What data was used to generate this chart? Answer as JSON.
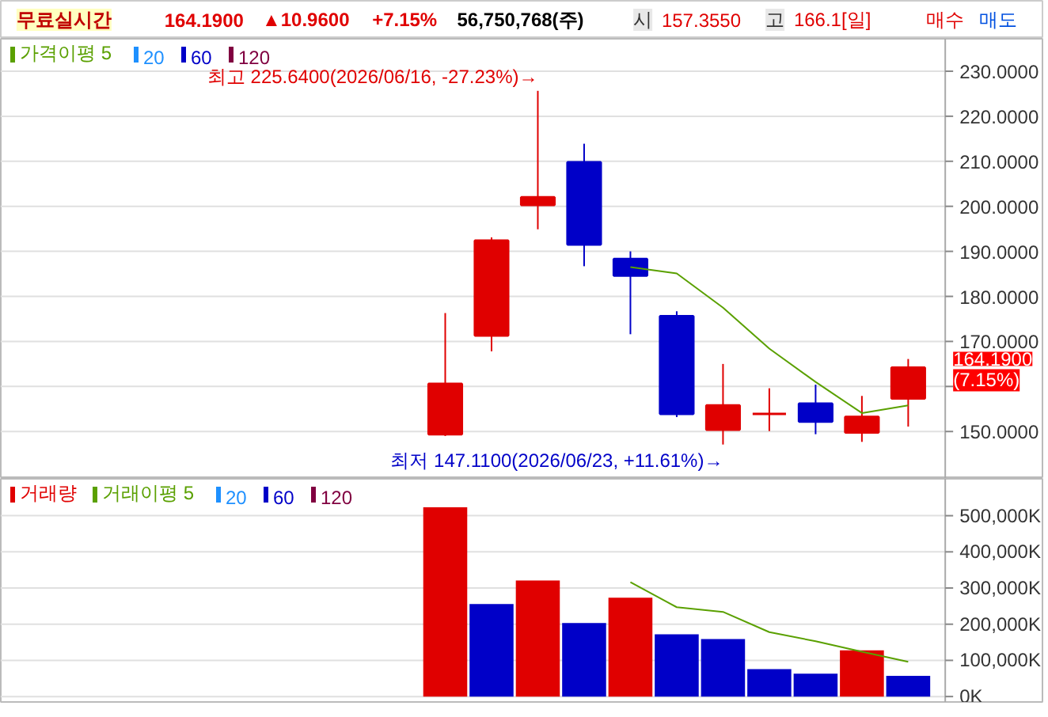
{
  "chart_data": [
    {
      "type": "other",
      "annotations": [
        "무료실시간",
        "164.1900",
        "▲10.9600",
        "+7.15%",
        "56,750,768(주)",
        "시",
        "157.3550",
        "고",
        "166.1[일]",
        "매수",
        "매도"
      ]
    },
    {
      "type": "candlestick",
      "categories": [
        null,
        null,
        null,
        null,
        null,
        null,
        null,
        null,
        null,
        null,
        null
      ],
      "ohlc": [
        [
          149.4,
          176.3,
          149.0,
          160.6
        ],
        [
          171.3,
          193.1,
          167.8,
          192.4
        ],
        [
          200.3,
          225.64,
          194.9,
          202.0
        ],
        [
          209.8,
          213.9,
          186.7,
          191.5
        ],
        [
          188.3,
          190.0,
          171.6,
          184.6
        ],
        [
          175.6,
          176.7,
          153.2,
          153.9
        ],
        [
          150.4,
          165.0,
          147.11,
          155.8
        ],
        [
          153.9,
          159.6,
          150.1,
          153.9
        ],
        [
          156.2,
          160.4,
          149.4,
          152.2
        ],
        [
          149.8,
          157.9,
          147.7,
          153.23
        ],
        [
          157.355,
          166.1,
          151.1,
          164.19
        ]
      ],
      "colors": [
        "#e00000",
        "#e00000",
        "#e00000",
        "#0000c8",
        "#0000c8",
        "#0000c8",
        "#e00000",
        "#e00000",
        "#0000c8",
        "#e00000",
        "#e00000"
      ],
      "series": [
        {
          "name": "가격이평 5",
          "type": "line",
          "color": "#5aa000",
          "values": [
            null,
            null,
            null,
            null,
            186.5,
            185.1,
            177.5,
            168.4,
            161.0,
            154.1,
            155.8
          ]
        }
      ],
      "annotations": [
        "20",
        "60",
        "120",
        "최고 225.6400(2026/06/16, -27.23%)→",
        "최저 147.1100(2026/06/23, +11.61%)→",
        "164.1900",
        "(7.15%)"
      ],
      "ylim": [
        139.5,
        237.2
      ],
      "yticks": [
        {
          "value": 150,
          "label": "150.0000"
        },
        {
          "value": 160,
          "label": null
        },
        {
          "value": 170,
          "label": "170.0000"
        },
        {
          "value": 180,
          "label": "180.0000"
        },
        {
          "value": 190,
          "label": "190.0000"
        },
        {
          "value": 200,
          "label": "200.0000"
        },
        {
          "value": 210,
          "label": "210.0000"
        },
        {
          "value": 220,
          "label": "220.0000"
        },
        {
          "value": 230,
          "label": "230.0000"
        }
      ],
      "grid": "y",
      "legend": "top left",
      "tick_labels": "y"
    },
    {
      "type": "bar",
      "categories": [
        null,
        null,
        null,
        null,
        null,
        null,
        null,
        null,
        null,
        null,
        null
      ],
      "colors": [
        "#e00000",
        "#0000c8",
        "#e00000",
        "#0000c8",
        "#e00000",
        "#0000c8",
        "#0000c8",
        "#0000c8",
        "#0000c8",
        "#e00000",
        "#0000c8"
      ],
      "series": [
        {
          "name": "거래량",
          "type": "bar",
          "colors": [
            "#e00000",
            "#0000c8",
            "#e00000",
            "#0000c8",
            "#e00000",
            "#0000c8",
            "#0000c8",
            "#0000c8",
            "#0000c8",
            "#e00000",
            "#0000c8"
          ],
          "values": [
            523000,
            256000,
            321000,
            203000,
            273000,
            172000,
            159000,
            76000,
            63000,
            128000,
            57000
          ]
        },
        {
          "name": "거래이평 5",
          "type": "line",
          "color": "#5aa000",
          "values": [
            null,
            null,
            null,
            null,
            316000,
            247000,
            234000,
            178000,
            153000,
            124000,
            96000
          ]
        }
      ],
      "annotations": [
        "20",
        "60",
        "120"
      ],
      "ylim": [
        -15000,
        602000
      ],
      "yticks": [
        {
          "value": 0,
          "label": "0K"
        },
        {
          "value": 100000,
          "label": "100,000K"
        },
        {
          "value": 200000,
          "label": "200,000K"
        },
        {
          "value": 300000,
          "label": "300,000K"
        },
        {
          "value": 400000,
          "label": "400,000K"
        },
        {
          "value": 500000,
          "label": "500,000K"
        }
      ],
      "grid": "y",
      "legend": "top left",
      "tick_labels": "y"
    }
  ]
}
